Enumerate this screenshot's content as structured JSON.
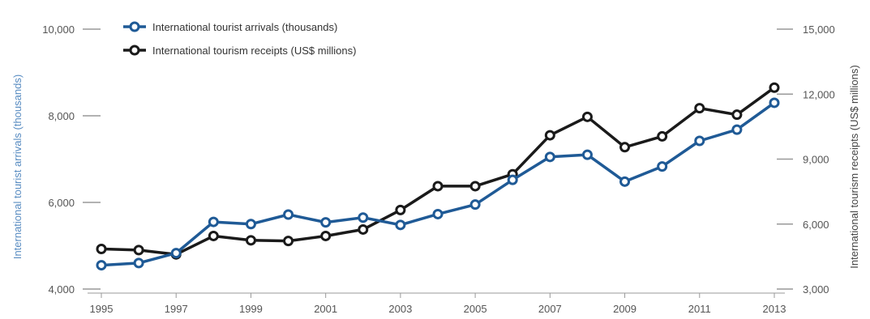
{
  "chart_data": {
    "type": "line",
    "x": [
      1995,
      1996,
      1997,
      1998,
      1999,
      2000,
      2001,
      2002,
      2003,
      2004,
      2005,
      2006,
      2007,
      2008,
      2009,
      2010,
      2011,
      2012,
      2013
    ],
    "x_ticks": [
      "1995",
      "1997",
      "1999",
      "2001",
      "2003",
      "2005",
      "2007",
      "2009",
      "2011",
      "2013"
    ],
    "series": [
      {
        "name": "International tourist arrivals (thousands)",
        "axis": "left",
        "color": "#1f5a96",
        "values": [
          4550,
          4600,
          4830,
          5550,
          5500,
          5720,
          5540,
          5650,
          5480,
          5730,
          5950,
          6520,
          7050,
          7100,
          6480,
          6830,
          7420,
          7680,
          8300
        ]
      },
      {
        "name": "International tourism receipts (US$ millions)",
        "axis": "right",
        "color": "#1a1a1a",
        "values": [
          4850,
          4800,
          4600,
          5450,
          5250,
          5220,
          5450,
          5750,
          6650,
          7750,
          7750,
          8300,
          10100,
          10950,
          9550,
          10050,
          11350,
          11050,
          12300
        ]
      }
    ],
    "ylabel": "International tourist arrivals (thousands)",
    "y2label": "International tourism receipts (US$ millions)",
    "ylim": [
      4000,
      10000
    ],
    "y_ticks": [
      "4,000",
      "6,000",
      "8,000",
      "10,000"
    ],
    "y2lim": [
      3000,
      15000
    ],
    "y2_ticks": [
      "3,000",
      "6,000",
      "9,000",
      "12,000",
      "15,000"
    ],
    "grid": false,
    "legend_position": "top-left"
  }
}
